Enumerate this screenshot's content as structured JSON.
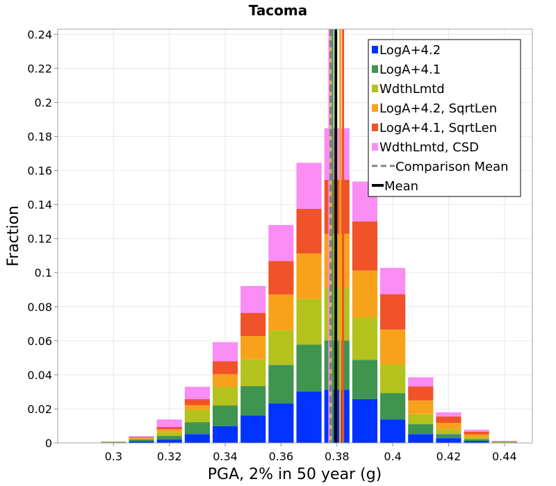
{
  "chart_data": {
    "type": "bar",
    "title": "Tacoma",
    "xlabel": "PGA, 2% in 50 year (g)",
    "ylabel": "Fraction",
    "xlim": [
      0.28,
      0.45
    ],
    "ylim": [
      0,
      0.243
    ],
    "grid": true,
    "legend_position": "top-right",
    "xticks": [
      {
        "value": 0.3,
        "label": "0.3"
      },
      {
        "value": 0.32,
        "label": "0.32"
      },
      {
        "value": 0.34,
        "label": "0.34"
      },
      {
        "value": 0.36,
        "label": "0.36"
      },
      {
        "value": 0.38,
        "label": "0.38"
      },
      {
        "value": 0.4,
        "label": "0.4"
      },
      {
        "value": 0.42,
        "label": "0.42"
      },
      {
        "value": 0.44,
        "label": "0.44"
      }
    ],
    "yticks": [
      {
        "value": 0,
        "label": "0"
      },
      {
        "value": 0.02,
        "label": "0.02"
      },
      {
        "value": 0.04,
        "label": "0.04"
      },
      {
        "value": 0.06,
        "label": "0.06"
      },
      {
        "value": 0.08,
        "label": "0.08"
      },
      {
        "value": 0.1,
        "label": "0.1"
      },
      {
        "value": 0.12,
        "label": "0.12"
      },
      {
        "value": 0.14,
        "label": "0.14"
      },
      {
        "value": 0.16,
        "label": "0.16"
      },
      {
        "value": 0.18,
        "label": "0.18"
      },
      {
        "value": 0.2,
        "label": "0.2"
      },
      {
        "value": 0.22,
        "label": "0.22"
      },
      {
        "value": 0.24,
        "label": "0.24"
      }
    ],
    "bin_width": 0.01,
    "categories": [
      0.3,
      0.31,
      0.32,
      0.33,
      0.34,
      0.35,
      0.36,
      0.37,
      0.38,
      0.39,
      0.4,
      0.41,
      0.42,
      0.43,
      0.44
    ],
    "series": [
      {
        "name": "LogA+4.2",
        "color": "#0033ff",
        "values": [
          0.0002,
          0.001,
          0.002,
          0.0052,
          0.0098,
          0.0162,
          0.0232,
          0.0302,
          0.0312,
          0.0258,
          0.0138,
          0.0052,
          0.0028,
          0.0012,
          0.0002
        ]
      },
      {
        "name": "LogA+4.1",
        "color": "#3f9450",
        "values": [
          0.0002,
          0.001,
          0.0022,
          0.007,
          0.0122,
          0.0172,
          0.0226,
          0.0275,
          0.029,
          0.023,
          0.0155,
          0.0058,
          0.0024,
          0.001,
          0.0002
        ]
      },
      {
        "name": "WdthLmtd",
        "color": "#b3c21d",
        "values": [
          0.0002,
          0.0005,
          0.002,
          0.0072,
          0.0108,
          0.0158,
          0.0202,
          0.0268,
          0.0308,
          0.025,
          0.0168,
          0.0058,
          0.0028,
          0.0012,
          0.0002
        ]
      },
      {
        "name": "LogA+4.2, SqrtLen",
        "color": "#f8a21c",
        "values": [
          0.0001,
          0.0005,
          0.0018,
          0.0028,
          0.0076,
          0.0136,
          0.0212,
          0.0268,
          0.0318,
          0.0275,
          0.0205,
          0.0082,
          0.0038,
          0.0016,
          0.0002
        ]
      },
      {
        "name": "LogA+4.1, SqrtLen",
        "color": "#f0522a",
        "values": [
          0.0001,
          0.0005,
          0.0014,
          0.0036,
          0.0076,
          0.0136,
          0.0196,
          0.0262,
          0.0318,
          0.0288,
          0.0208,
          0.0082,
          0.0038,
          0.0016,
          0.0002
        ]
      },
      {
        "name": "WdthLmtd, CSD",
        "color": "#f98df4",
        "values": [
          0.0001,
          0.0005,
          0.0044,
          0.0072,
          0.0112,
          0.0158,
          0.0212,
          0.027,
          0.0302,
          0.0234,
          0.0154,
          0.0054,
          0.0024,
          0.0012,
          0.0002
        ]
      }
    ],
    "vertical_lines": [
      {
        "name": "LogA+4.2 mean",
        "x": 0.3777,
        "color": "#0033ff",
        "dash": false
      },
      {
        "name": "LogA+4.1 mean",
        "x": 0.3784,
        "color": "#3f9450",
        "dash": false
      },
      {
        "name": "WdthLmtd mean",
        "x": 0.3779,
        "color": "#b3c21d",
        "dash": false
      },
      {
        "name": "LogA+4.2, SqrtLen mean",
        "x": 0.3812,
        "color": "#f8a21c",
        "dash": false
      },
      {
        "name": "LogA+4.1, SqrtLen mean",
        "x": 0.3822,
        "color": "#f0522a",
        "dash": false
      },
      {
        "name": "WdthLmtd, CSD mean",
        "x": 0.3773,
        "color": "#f98df4",
        "dash": false
      },
      {
        "name": "Comparison Mean",
        "x": 0.3778,
        "color": "#808080",
        "dash": true
      },
      {
        "name": "Mean",
        "x": 0.3796,
        "color": "#000000",
        "dash": false
      }
    ],
    "legend": [
      {
        "label": "LogA+4.2",
        "color": "#0033ff",
        "kind": "box"
      },
      {
        "label": "LogA+4.1",
        "color": "#3f9450",
        "kind": "box"
      },
      {
        "label": "WdthLmtd",
        "color": "#b3c21d",
        "kind": "box"
      },
      {
        "label": "LogA+4.2, SqrtLen",
        "color": "#f8a21c",
        "kind": "box"
      },
      {
        "label": "LogA+4.1, SqrtLen",
        "color": "#f0522a",
        "kind": "box"
      },
      {
        "label": "WdthLmtd, CSD",
        "color": "#f98df4",
        "kind": "box"
      },
      {
        "label": "Comparison Mean",
        "color": "#808080",
        "kind": "dash"
      },
      {
        "label": "Mean",
        "color": "#000000",
        "kind": "line"
      }
    ]
  }
}
